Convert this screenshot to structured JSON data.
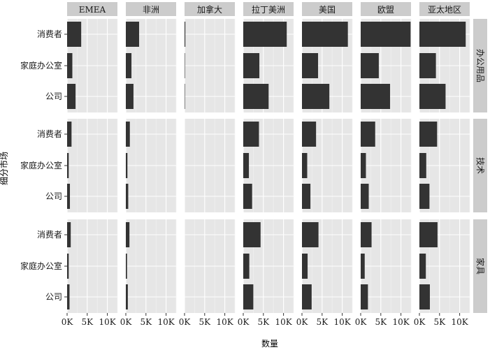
{
  "chart_data": {
    "type": "bar",
    "orientation": "horizontal",
    "xlabel": "数量",
    "ylabel": "细分市场",
    "xlim": [
      0,
      12500
    ],
    "x_ticks": [
      0,
      5000,
      10000
    ],
    "x_tick_labels": [
      "0K",
      "5K",
      "10K"
    ],
    "columns": [
      "EMEA",
      "非洲",
      "加拿大",
      "拉丁美洲",
      "美国",
      "欧盟",
      "亚太地区"
    ],
    "rows": [
      "办公用品",
      "技术",
      "家具"
    ],
    "categories": [
      "消费者",
      "家庭办公室",
      "公司"
    ],
    "grid": true,
    "values": {
      "办公用品": {
        "EMEA": [
          3500,
          1300,
          2100
        ],
        "非洲": [
          3300,
          1400,
          1900
        ],
        "加拿大": [
          200,
          100,
          100
        ],
        "拉丁美洲": [
          10800,
          4000,
          6300
        ],
        "美国": [
          11400,
          4000,
          6800
        ],
        "欧盟": [
          12400,
          4500,
          7300
        ],
        "亚太地区": [
          11500,
          4100,
          6500
        ]
      },
      "技术": {
        "EMEA": [
          1100,
          400,
          700
        ],
        "非洲": [
          1000,
          400,
          600
        ],
        "加拿大": [
          0,
          0,
          0
        ],
        "拉丁美洲": [
          3900,
          1400,
          2200
        ],
        "美国": [
          3500,
          1300,
          2100
        ],
        "欧盟": [
          3600,
          1300,
          2000
        ],
        "亚太地区": [
          4400,
          1700,
          2500
        ]
      },
      "家具": {
        "EMEA": [
          900,
          400,
          600
        ],
        "非洲": [
          900,
          300,
          500
        ],
        "加拿大": [
          0,
          0,
          0
        ],
        "拉丁美洲": [
          4300,
          1500,
          2500
        ],
        "美国": [
          4100,
          1400,
          2400
        ],
        "欧盟": [
          2700,
          1000,
          1800
        ],
        "亚太地区": [
          4500,
          1600,
          2600
        ]
      }
    }
  },
  "colors": {
    "bar": "#333333",
    "panel_bg": "#e6e6e6",
    "grid_major": "#ffffff",
    "strip_bg": "#cccccc"
  }
}
